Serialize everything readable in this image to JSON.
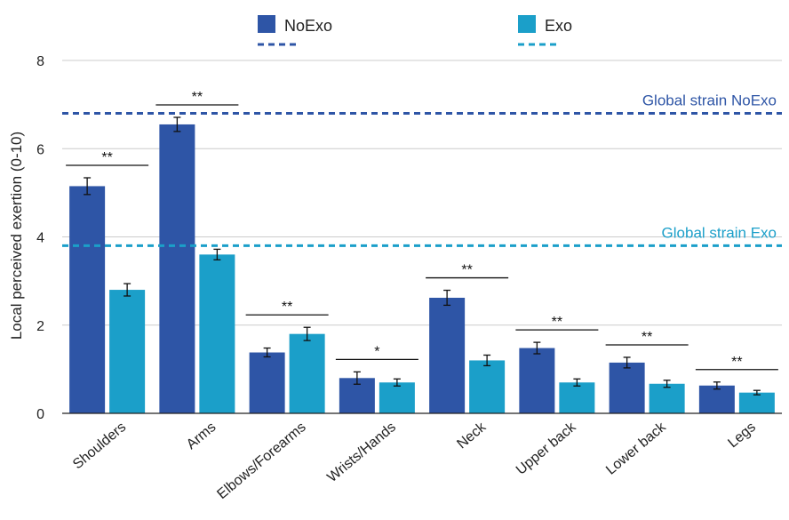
{
  "chart_data": {
    "type": "bar",
    "title": "",
    "xlabel": "",
    "ylabel": "Local perceived exertion (0-10)",
    "ylim": [
      0,
      8
    ],
    "yticks": [
      "0",
      "2",
      "4",
      "6",
      "8"
    ],
    "grid": true,
    "legend_position": "top",
    "categories": [
      "Shoulders",
      "Arms",
      "Elbows/Forearms",
      "Wrists/Hands",
      "Neck",
      "Upper back",
      "Lower back",
      "Legs"
    ],
    "series": [
      {
        "name": "NoExo",
        "color": "#2e55a6",
        "values": [
          5.15,
          6.55,
          1.38,
          0.8,
          2.62,
          1.48,
          1.15,
          0.63
        ],
        "errors": [
          0.19,
          0.16,
          0.1,
          0.14,
          0.17,
          0.13,
          0.12,
          0.08
        ]
      },
      {
        "name": "Exo",
        "color": "#1b9fc9",
        "values": [
          2.8,
          3.6,
          1.8,
          0.7,
          1.2,
          0.7,
          0.67,
          0.47
        ],
        "errors": [
          0.14,
          0.12,
          0.15,
          0.08,
          0.12,
          0.08,
          0.08,
          0.05
        ]
      }
    ],
    "reference_lines": [
      {
        "label": "Global strain NoExo",
        "value": 6.8,
        "color": "#2e55a6"
      },
      {
        "label": "Global strain Exo",
        "value": 3.8,
        "color": "#1b9fc9"
      }
    ],
    "significance": [
      "**",
      "**",
      "**",
      "*",
      "**",
      "**",
      "**",
      "**"
    ]
  }
}
